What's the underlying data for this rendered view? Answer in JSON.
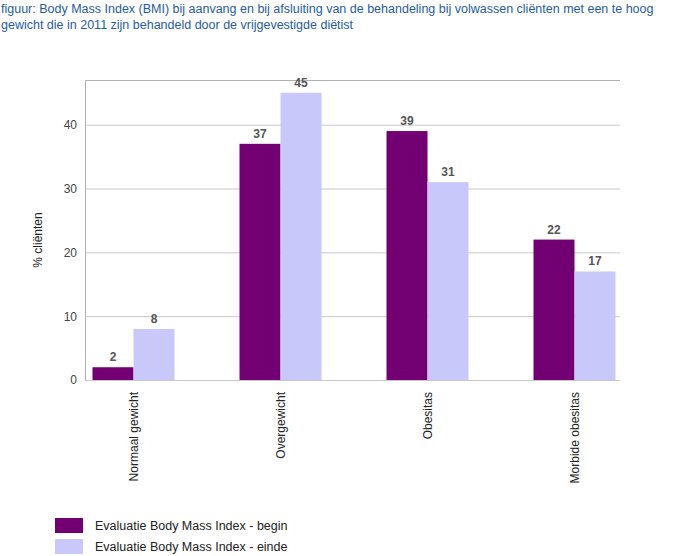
{
  "chart_data": {
    "type": "bar",
    "title": "figuur: Body Mass Index (BMI) bij aanvang en bij afsluiting van de behandeling bij volwassen cliënten met een te hoog gewicht die in 2011 zijn behandeld door de vrijgevestigde diëtist",
    "ylabel": "% cliënten",
    "categories": [
      "Normaal gewicht",
      "Overgewicht",
      "Obesitas",
      "Morbide obesitas"
    ],
    "series": [
      {
        "name": "Evaluatie Body Mass Index - begin",
        "color": "#720072",
        "values": [
          2,
          37,
          39,
          22
        ]
      },
      {
        "name": "Evaluatie Body Mass Index - einde",
        "color": "#c8c8fa",
        "values": [
          8,
          45,
          31,
          17
        ]
      }
    ],
    "ylim": [
      0,
      47
    ],
    "yticks": [
      0,
      10,
      20,
      30,
      40
    ],
    "grid": true,
    "data_labels": true,
    "legend": "bottom-left"
  }
}
